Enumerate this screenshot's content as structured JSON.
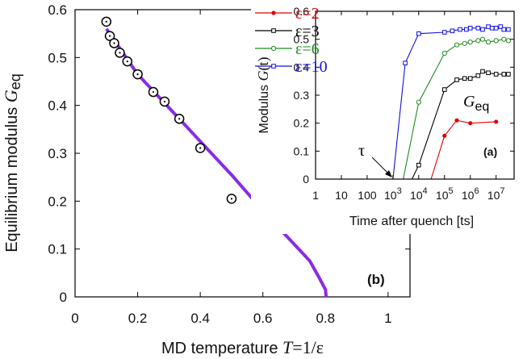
{
  "chart_data": [
    {
      "id": "main",
      "type": "scatter",
      "panel_label": "(b)",
      "xlabel": {
        "prefix": "MD temperature ",
        "var": "T",
        "rest": "=1/ε"
      },
      "ylabel": {
        "prefix": "Equilibrium modulus ",
        "var": "G",
        "sub": "eq"
      },
      "xlim": [
        0,
        1.07
      ],
      "ylim": [
        0,
        0.6
      ],
      "xticks": [
        0,
        0.2,
        0.4,
        0.6,
        0.8,
        1
      ],
      "xtick_labels": [
        "0",
        "0.2",
        "0.4",
        "0.6",
        "0.8",
        "1"
      ],
      "yticks": [
        0,
        0.1,
        0.2,
        0.3,
        0.4,
        0.5,
        0.6
      ],
      "ytick_labels": [
        "0",
        "0.1",
        "0.2",
        "0.3",
        "0.4",
        "0.5",
        "0.6"
      ],
      "grid": false,
      "line_color": "#8a2be2",
      "line": {
        "x": [
          0.1,
          0.2,
          0.3,
          0.4,
          0.5,
          0.6,
          0.7,
          0.75,
          0.78,
          0.8,
          0.802
        ],
        "y": [
          0.56,
          0.465,
          0.395,
          0.325,
          0.255,
          0.18,
          0.11,
          0.075,
          0.04,
          0.015,
          0.0
        ]
      },
      "points": {
        "x": [
          0.1,
          0.111,
          0.125,
          0.143,
          0.167,
          0.2,
          0.25,
          0.286,
          0.333,
          0.4,
          0.5
        ],
        "y": [
          0.575,
          0.545,
          0.53,
          0.51,
          0.492,
          0.465,
          0.428,
          0.408,
          0.372,
          0.311,
          0.205
        ]
      }
    },
    {
      "id": "inset",
      "type": "line",
      "panel_label": "(a)",
      "annotation": {
        "var": "G",
        "sub": "eq"
      },
      "tau_label": "τ",
      "xlabel": "Time after quench  [ts]",
      "ylabel": {
        "prefix": "Modulus ",
        "var": "G",
        "rest": "(t)"
      },
      "xscale": "log",
      "xlim": [
        1,
        50000000
      ],
      "ylim": [
        0,
        0.6
      ],
      "xticks": [
        1,
        10,
        100,
        1000,
        10000,
        100000,
        1000000,
        10000000
      ],
      "xtick_labels": [
        {
          "base": "1"
        },
        {
          "base": "10"
        },
        {
          "base": "100"
        },
        {
          "base": "10",
          "exp": "3"
        },
        {
          "base": "10",
          "exp": "4"
        },
        {
          "base": "10",
          "exp": "5"
        },
        {
          "base": "10",
          "exp": "6"
        },
        {
          "base": "10",
          "exp": "7"
        }
      ],
      "yticks": [
        0,
        0.1,
        0.2,
        0.3,
        0.4,
        0.5,
        0.6
      ],
      "ytick_labels": [
        "0",
        "0.1",
        "0.2",
        "0.3",
        "0.4",
        "0.5",
        "0.6"
      ],
      "legend": "top-left",
      "series": [
        {
          "name": "ε=2",
          "color": "#e00000",
          "marker": "dot",
          "x": [
            30000,
            100000,
            300000,
            1000000,
            10000000
          ],
          "y": [
            0.0,
            0.155,
            0.21,
            0.2,
            0.205
          ]
        },
        {
          "name": "ε=3",
          "color": "#000000",
          "marker": "square",
          "x": [
            5500,
            10000,
            100000,
            300000,
            600000,
            1000000,
            2000000,
            3000000,
            5000000,
            10000000,
            20000000,
            30000000
          ],
          "y": [
            0.0,
            0.05,
            0.32,
            0.355,
            0.36,
            0.36,
            0.37,
            0.385,
            0.38,
            0.375,
            0.375,
            0.375
          ]
        },
        {
          "name": "ε=6",
          "color": "#1f8a1f",
          "marker": "circle",
          "x": [
            2500,
            10000,
            100000,
            300000,
            600000,
            1000000,
            2000000,
            3000000,
            5000000,
            10000000,
            20000000,
            30000000
          ],
          "y": [
            0.0,
            0.275,
            0.45,
            0.48,
            0.485,
            0.49,
            0.495,
            0.5,
            0.49,
            0.495,
            0.5,
            0.495
          ]
        },
        {
          "name": "ε=10",
          "color": "#1010e0",
          "marker": "square",
          "x": [
            1000,
            3000,
            10000,
            100000,
            200000,
            400000,
            700000,
            1000000,
            2000000,
            3000000,
            5000000,
            7000000,
            10000000,
            15000000,
            20000000,
            30000000
          ],
          "y": [
            0.0,
            0.415,
            0.52,
            0.525,
            0.53,
            0.535,
            0.535,
            0.54,
            0.54,
            0.535,
            0.545,
            0.54,
            0.54,
            0.545,
            0.535,
            0.535
          ]
        }
      ]
    }
  ]
}
